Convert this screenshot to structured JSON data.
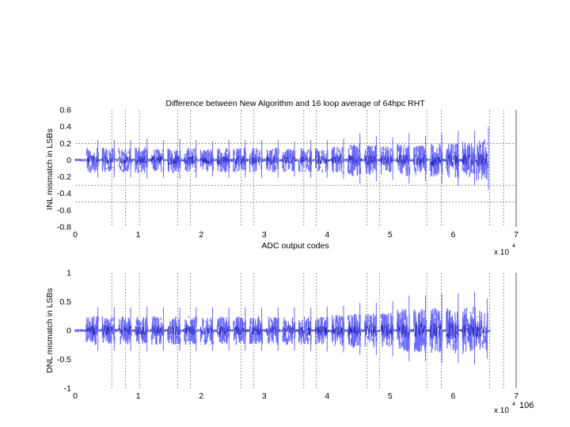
{
  "slide": {
    "page_number": "106"
  },
  "chart_data": [
    {
      "type": "line",
      "title": "Difference between New Algorithm and 16 loop average of 64hpc RHT",
      "xlabel": "ADC output codes",
      "ylabel": "INL mismatch in LSBs",
      "x_exponent_label": "x 10",
      "x_exponent": "4",
      "xlim": [
        0,
        7
      ],
      "ylim": [
        -0.8,
        0.6
      ],
      "xticks": [
        "0",
        "1",
        "2",
        "3",
        "4",
        "5",
        "6",
        "7"
      ],
      "yticks": [
        "0.6",
        "0.4",
        "0.2",
        "0",
        "-0.2",
        "-0.4",
        "-0.6",
        "-0.8"
      ],
      "ytick_values": [
        0.6,
        0.4,
        0.2,
        0,
        -0.2,
        -0.4,
        -0.6,
        -0.8
      ],
      "vertical_gridlines_x": [
        0.58,
        0.8,
        1.02,
        1.63,
        1.83,
        2.63,
        2.83,
        3.63,
        3.83,
        4.63,
        4.83,
        5.58,
        5.81,
        6.58,
        6.8
      ],
      "horizontal_gridlines_y": [
        0.2,
        -0.3,
        -0.5
      ],
      "series_color": "#6a6aff",
      "series_dark_color": "#000088",
      "clusters": [
        {
          "center": 0.27,
          "amp": 0.15
        },
        {
          "center": 0.53,
          "amp": 0.15
        },
        {
          "center": 0.79,
          "amp": 0.15
        },
        {
          "center": 1.05,
          "amp": 0.16
        },
        {
          "center": 1.31,
          "amp": 0.15
        },
        {
          "center": 1.57,
          "amp": 0.16
        },
        {
          "center": 1.83,
          "amp": 0.15
        },
        {
          "center": 2.09,
          "amp": 0.14
        },
        {
          "center": 2.35,
          "amp": 0.15
        },
        {
          "center": 2.61,
          "amp": 0.15
        },
        {
          "center": 2.87,
          "amp": 0.15
        },
        {
          "center": 3.13,
          "amp": 0.15
        },
        {
          "center": 3.39,
          "amp": 0.14
        },
        {
          "center": 3.65,
          "amp": 0.15
        },
        {
          "center": 3.91,
          "amp": 0.15
        },
        {
          "center": 4.17,
          "amp": 0.16
        },
        {
          "center": 4.43,
          "amp": 0.2
        },
        {
          "center": 4.69,
          "amp": 0.18
        },
        {
          "center": 4.95,
          "amp": 0.17
        },
        {
          "center": 5.21,
          "amp": 0.2
        },
        {
          "center": 5.47,
          "amp": 0.18
        },
        {
          "center": 5.73,
          "amp": 0.2
        },
        {
          "center": 5.99,
          "amp": 0.22
        },
        {
          "center": 6.25,
          "amp": 0.22
        },
        {
          "center": 6.47,
          "amp": 0.25
        }
      ],
      "data_x_end": 6.55
    },
    {
      "type": "line",
      "title": "",
      "xlabel": "",
      "ylabel": "DNL mismatch in LSBs",
      "x_exponent_label": "x 10",
      "x_exponent": "4",
      "xlim": [
        0,
        7
      ],
      "ylim": [
        -1,
        1
      ],
      "xticks": [
        "0",
        "1",
        "2",
        "3",
        "4",
        "5",
        "6",
        "7"
      ],
      "yticks": [
        "1",
        "0.5",
        "0",
        "-0.5",
        "-1"
      ],
      "ytick_values": [
        1,
        0.5,
        0,
        -0.5,
        -1
      ],
      "vertical_gridlines_x": [
        0.58,
        0.8,
        1.02,
        1.63,
        1.83,
        2.63,
        2.83,
        3.63,
        3.83,
        4.63,
        4.83,
        5.58,
        5.81,
        6.58,
        6.8
      ],
      "horizontal_gridlines_y": [],
      "series_color": "#6a6aff",
      "series_dark_color": "#000088",
      "clusters": [
        {
          "center": 0.27,
          "amp": 0.25
        },
        {
          "center": 0.53,
          "amp": 0.25
        },
        {
          "center": 0.79,
          "amp": 0.25
        },
        {
          "center": 1.05,
          "amp": 0.26
        },
        {
          "center": 1.31,
          "amp": 0.25
        },
        {
          "center": 1.57,
          "amp": 0.25
        },
        {
          "center": 1.83,
          "amp": 0.25
        },
        {
          "center": 2.09,
          "amp": 0.25
        },
        {
          "center": 2.35,
          "amp": 0.25
        },
        {
          "center": 2.61,
          "amp": 0.25
        },
        {
          "center": 2.87,
          "amp": 0.25
        },
        {
          "center": 3.13,
          "amp": 0.25
        },
        {
          "center": 3.39,
          "amp": 0.25
        },
        {
          "center": 3.65,
          "amp": 0.25
        },
        {
          "center": 3.91,
          "amp": 0.26
        },
        {
          "center": 4.17,
          "amp": 0.27
        },
        {
          "center": 4.43,
          "amp": 0.3
        },
        {
          "center": 4.69,
          "amp": 0.3
        },
        {
          "center": 4.95,
          "amp": 0.32
        },
        {
          "center": 5.21,
          "amp": 0.38
        },
        {
          "center": 5.47,
          "amp": 0.38
        },
        {
          "center": 5.73,
          "amp": 0.4
        },
        {
          "center": 5.99,
          "amp": 0.4
        },
        {
          "center": 6.25,
          "amp": 0.42
        },
        {
          "center": 6.45,
          "amp": 0.35
        }
      ],
      "data_x_end": 6.6
    }
  ]
}
